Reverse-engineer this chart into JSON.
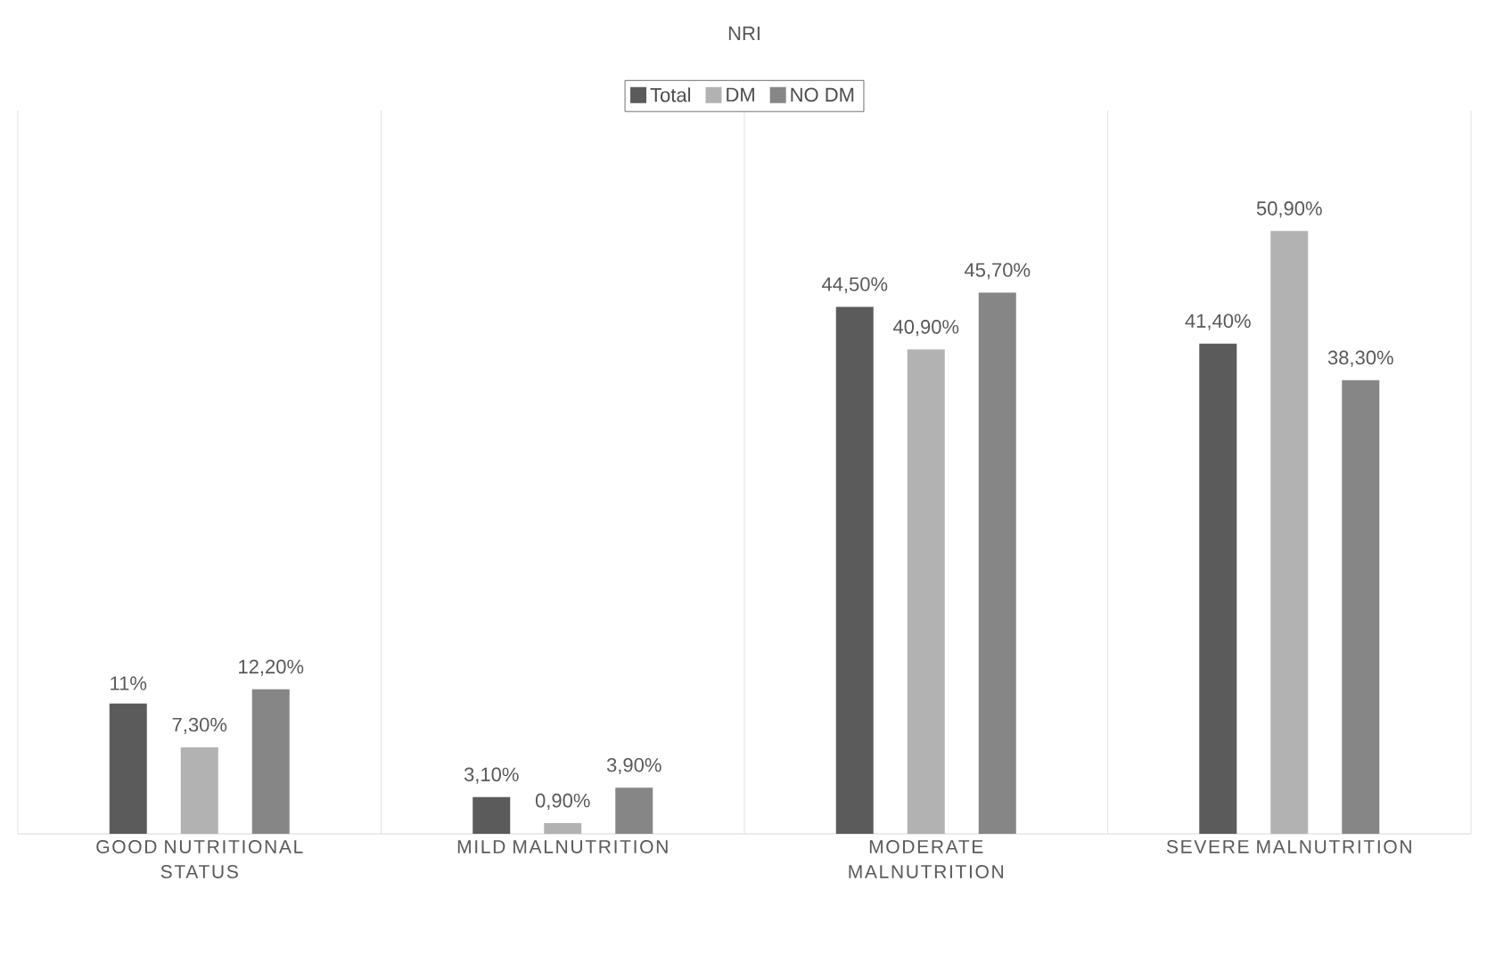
{
  "chart_data": {
    "type": "bar",
    "title": "NRI",
    "categories": [
      "GOOD NUTRITIONAL STATUS",
      "MILD MALNUTRITION",
      "MODERATE MALNUTRITION",
      "SEVERE MALNUTRITION"
    ],
    "series": [
      {
        "name": "Total",
        "color": "#5b5b5b",
        "values": [
          11,
          3.1,
          44.5,
          41.4
        ],
        "value_labels": [
          "11%",
          "3,10%",
          "44,50%",
          "41,40%"
        ]
      },
      {
        "name": "DM",
        "color": "#b2b2b2",
        "values": [
          7.3,
          0.9,
          40.9,
          50.9
        ],
        "value_labels": [
          "7,30%",
          "0,90%",
          "40,90%",
          "50,90%"
        ]
      },
      {
        "name": "NO DM",
        "color": "#868686",
        "values": [
          12.2,
          3.9,
          45.7,
          38.3
        ],
        "value_labels": [
          "12,20%",
          "3,90%",
          "45,70%",
          "38,30%"
        ]
      }
    ],
    "grid": "x",
    "legend": "top"
  }
}
